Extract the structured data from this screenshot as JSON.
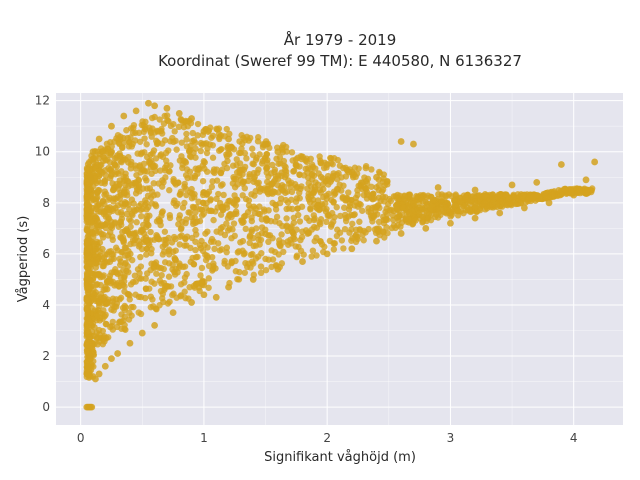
{
  "chart_data": {
    "type": "scatter",
    "title": "År 1979 - 2019",
    "subtitle": "Koordinat (Sweref 99 TM): E 440580, N 6136327",
    "xlabel": "Signifikant våghöjd (m)",
    "ylabel": "Vågperiod (s)",
    "xlim": [
      -0.2,
      4.4
    ],
    "ylim": [
      -0.7,
      12.3
    ],
    "x_ticks": [
      0,
      1,
      2,
      3,
      4
    ],
    "y_ticks": [
      0,
      2,
      4,
      6,
      8,
      10,
      12
    ],
    "x_tick_labels": [
      "0",
      "1",
      "2",
      "3",
      "4"
    ],
    "y_tick_labels": [
      "0",
      "2",
      "4",
      "6",
      "8",
      "10",
      "12"
    ],
    "grid": true,
    "legend": "none",
    "colors": {
      "marker": "#d4a21e",
      "plot_bg": "#e5e5ee",
      "grid": "#ffffff"
    },
    "series": [
      {
        "points": [
          [
            0.05,
            0.0
          ],
          [
            0.06,
            0.0
          ],
          [
            0.07,
            0.0
          ],
          [
            0.08,
            0.0
          ],
          [
            0.09,
            0.0
          ],
          [
            0.05,
            1.3
          ],
          [
            0.06,
            1.6
          ],
          [
            0.08,
            2.0
          ],
          [
            0.1,
            1.2
          ],
          [
            0.12,
            1.1
          ],
          [
            0.15,
            1.3
          ],
          [
            0.2,
            1.6
          ],
          [
            0.25,
            1.9
          ],
          [
            0.3,
            2.1
          ],
          [
            0.4,
            2.5
          ],
          [
            0.5,
            2.9
          ],
          [
            0.6,
            3.2
          ],
          [
            0.75,
            3.7
          ],
          [
            0.9,
            4.1
          ],
          [
            1.0,
            4.4
          ],
          [
            1.1,
            4.3
          ],
          [
            1.2,
            4.7
          ],
          [
            1.4,
            5.0
          ],
          [
            1.6,
            5.4
          ],
          [
            1.8,
            5.7
          ],
          [
            2.0,
            6.0
          ],
          [
            2.2,
            6.2
          ],
          [
            2.4,
            6.5
          ],
          [
            2.6,
            6.8
          ],
          [
            2.8,
            7.0
          ],
          [
            3.0,
            7.2
          ],
          [
            3.2,
            7.4
          ],
          [
            3.4,
            7.6
          ],
          [
            3.6,
            7.8
          ],
          [
            3.8,
            8.0
          ],
          [
            4.0,
            8.3
          ],
          [
            4.1,
            8.9
          ],
          [
            4.17,
            9.6
          ],
          [
            3.9,
            9.5
          ],
          [
            3.7,
            8.8
          ],
          [
            3.5,
            8.7
          ],
          [
            3.2,
            8.5
          ],
          [
            2.9,
            8.6
          ],
          [
            2.7,
            10.3
          ],
          [
            2.6,
            10.4
          ],
          [
            2.4,
            9.0
          ],
          [
            2.2,
            9.2
          ],
          [
            2.0,
            9.5
          ],
          [
            1.8,
            9.8
          ],
          [
            1.6,
            10.0
          ],
          [
            1.5,
            10.3
          ],
          [
            1.2,
            10.5
          ],
          [
            1.0,
            10.8
          ],
          [
            0.9,
            11.3
          ],
          [
            0.8,
            11.5
          ],
          [
            0.7,
            11.7
          ],
          [
            0.6,
            11.8
          ],
          [
            0.55,
            11.9
          ],
          [
            0.45,
            11.6
          ],
          [
            0.35,
            11.4
          ],
          [
            0.25,
            11.0
          ],
          [
            0.15,
            10.5
          ],
          [
            0.1,
            10.0
          ],
          [
            0.08,
            9.0
          ],
          [
            0.06,
            8.5
          ],
          [
            0.05,
            7.5
          ],
          [
            0.05,
            6.0
          ],
          [
            0.05,
            5.0
          ],
          [
            0.06,
            3.5
          ],
          [
            0.07,
            2.7
          ]
        ]
      }
    ]
  }
}
